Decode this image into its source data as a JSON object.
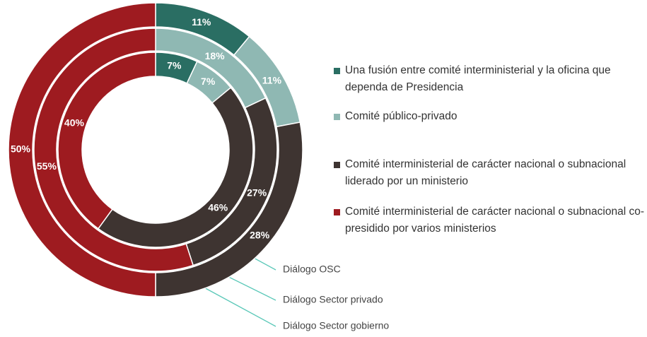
{
  "chart_data": {
    "type": "donut",
    "categories": [
      "Una fusión entre comité interministerial y la oficina que dependa de Presidencia",
      "Comité público-privado",
      "Comité interministerial de carácter nacional o subnacional liderado por un ministerio",
      "Comité interministerial de carácter nacional o subnacional co-presidido por varios ministerios"
    ],
    "colors": [
      "#2a6e63",
      "#8fb8b3",
      "#3e3431",
      "#9e1b20"
    ],
    "series": [
      {
        "name": "Diálogo OSC",
        "values": [
          7,
          7,
          46,
          40
        ],
        "value_labels": [
          "7%",
          "7%",
          "46%",
          "40%"
        ]
      },
      {
        "name": "Diálogo Sector privado",
        "values": [
          0,
          18,
          27,
          55
        ],
        "value_labels": [
          null,
          "18%",
          "27%",
          "55%"
        ]
      },
      {
        "name": "Diálogo Sector gobierno",
        "values": [
          11,
          11,
          28,
          50
        ],
        "value_labels": [
          "11%",
          "11%",
          "28%",
          "50%"
        ]
      }
    ]
  }
}
